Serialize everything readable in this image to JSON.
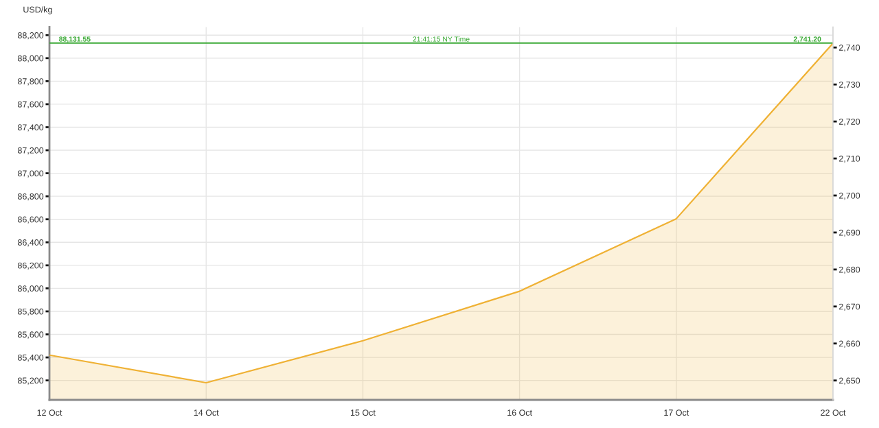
{
  "chart_data": {
    "type": "area",
    "ylabel": "USD/kg",
    "categories": [
      "12 Oct",
      "14 Oct",
      "15 Oct",
      "16 Oct",
      "17 Oct",
      "22 Oct"
    ],
    "series": [
      {
        "color": "#efb134",
        "values": [
          85420,
          85180,
          85545,
          85975,
          86605,
          88130
        ]
      }
    ],
    "ylim": [
      85031,
      88270
    ],
    "yticks": [
      {
        "value": 85200,
        "label": "85,200"
      },
      {
        "value": 85400,
        "label": "85,400"
      },
      {
        "value": 85600,
        "label": "85,600"
      },
      {
        "value": 85800,
        "label": "85,800"
      },
      {
        "value": 86000,
        "label": "86,000"
      },
      {
        "value": 86200,
        "label": "86,200"
      },
      {
        "value": 86400,
        "label": "86,400"
      },
      {
        "value": 86600,
        "label": "86,600"
      },
      {
        "value": 86800,
        "label": "86,800"
      },
      {
        "value": 87000,
        "label": "87,000"
      },
      {
        "value": 87200,
        "label": "87,200"
      },
      {
        "value": 87400,
        "label": "87,400"
      },
      {
        "value": 87600,
        "label": "87,600"
      },
      {
        "value": 87800,
        "label": "87,800"
      },
      {
        "value": 88000,
        "label": "88,000"
      },
      {
        "value": 88200,
        "label": "88,200"
      }
    ],
    "y2lim": [
      2644.76,
      2745.51
    ],
    "y2ticks": [
      {
        "value": 2650,
        "label": "2,650"
      },
      {
        "value": 2660,
        "label": "2,660"
      },
      {
        "value": 2670,
        "label": "2,670"
      },
      {
        "value": 2680,
        "label": "2,680"
      },
      {
        "value": 2690,
        "label": "2,690"
      },
      {
        "value": 2700,
        "label": "2,700"
      },
      {
        "value": 2710,
        "label": "2,710"
      },
      {
        "value": 2720,
        "label": "2,720"
      },
      {
        "value": 2730,
        "label": "2,730"
      },
      {
        "value": 2740,
        "label": "2,740"
      }
    ],
    "ref_lines": [
      {
        "axis": "y",
        "value": 88131.55,
        "label": "88,131.55",
        "color": "#3aa935"
      }
    ],
    "annotations": [
      "21:41:15 NY Time",
      "2,741.20"
    ],
    "grid": true
  }
}
